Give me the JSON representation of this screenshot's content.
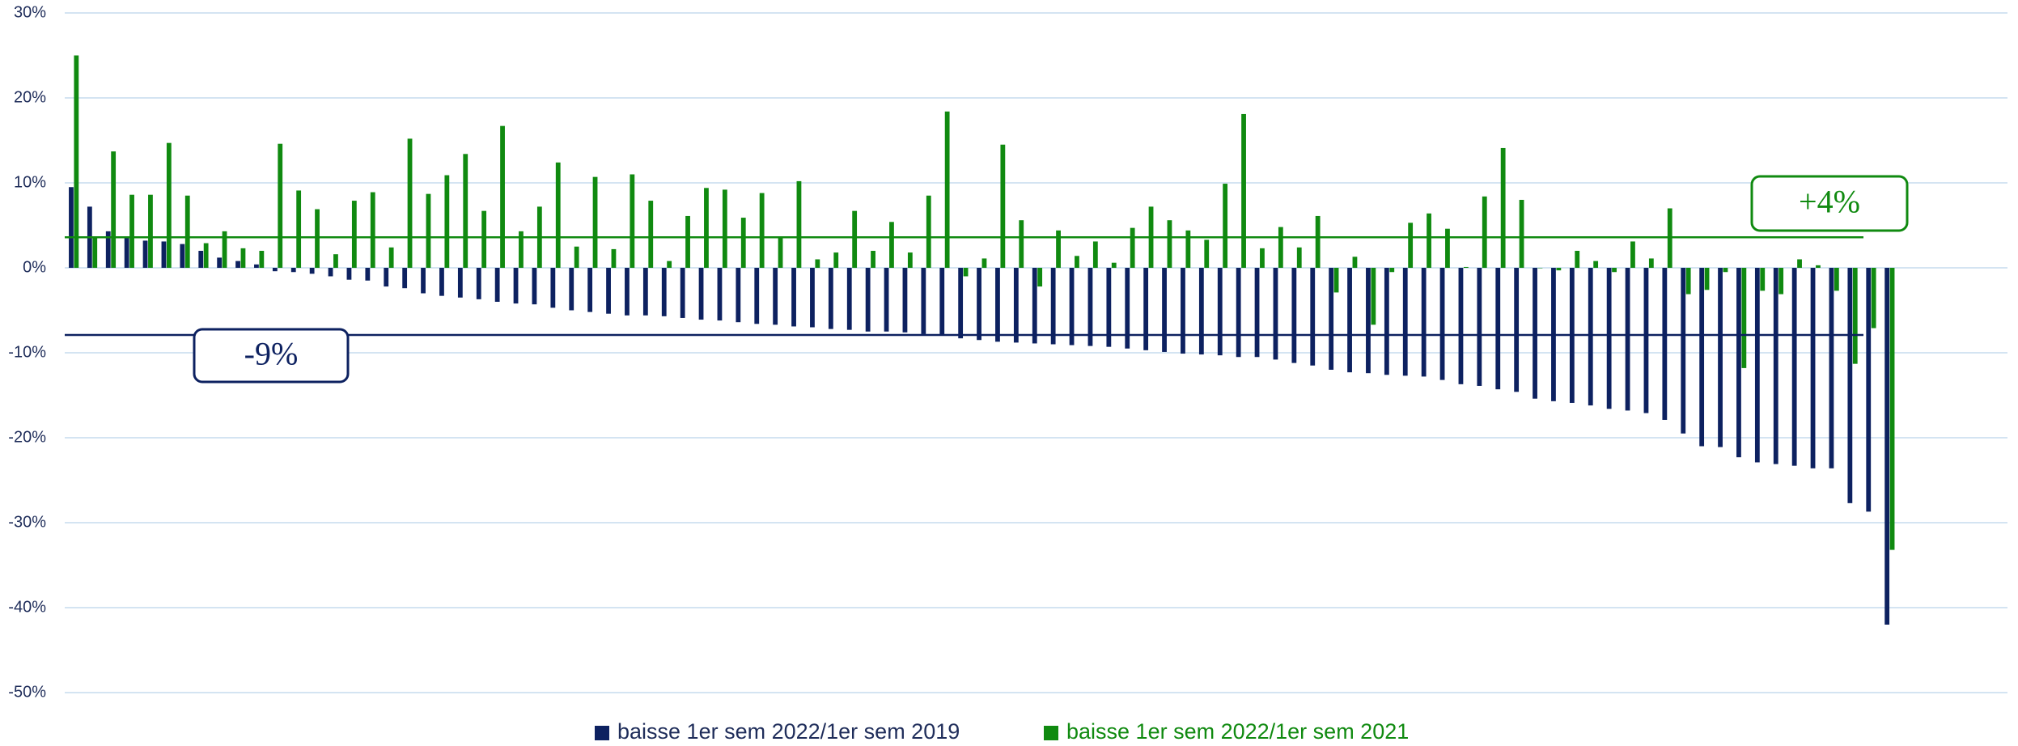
{
  "chart_data": {
    "type": "bar",
    "categories": [
      null,
      null,
      null,
      null,
      null,
      null,
      null,
      null,
      null,
      null,
      null,
      null,
      null,
      null,
      null,
      null,
      null,
      null,
      null,
      null,
      null,
      null,
      null,
      null,
      null,
      null,
      null,
      null,
      null,
      null,
      null,
      null,
      null,
      null,
      null,
      null,
      null,
      null,
      null,
      null,
      null,
      null,
      null,
      null,
      null,
      null,
      null,
      null,
      null,
      null,
      null,
      null,
      null,
      null,
      null,
      null,
      null,
      null,
      null,
      null,
      null,
      null,
      null,
      null,
      null,
      null,
      null,
      null,
      null,
      null,
      null,
      null,
      null,
      null,
      null,
      null,
      null,
      null,
      null,
      null,
      null,
      null,
      null,
      null,
      null,
      null,
      null,
      null,
      null,
      null,
      null,
      null,
      null,
      null,
      null,
      null,
      null,
      null,
      null
    ],
    "series": [
      {
        "name": "baisse 1er sem 2022/1er sem 2019",
        "color": "#0d2160",
        "values": [
          9.5,
          7.2,
          4.3,
          3.6,
          3.2,
          3.1,
          2.8,
          2.0,
          1.2,
          0.8,
          0.4,
          -0.4,
          -0.5,
          -0.7,
          -1.0,
          -1.4,
          -1.5,
          -2.2,
          -2.4,
          -3.0,
          -3.3,
          -3.5,
          -3.7,
          -4.0,
          -4.2,
          -4.3,
          -4.7,
          -5.0,
          -5.2,
          -5.4,
          -5.6,
          -5.6,
          -5.7,
          -5.9,
          -6.1,
          -6.2,
          -6.4,
          -6.6,
          -6.7,
          -6.9,
          -7.0,
          -7.2,
          -7.3,
          -7.5,
          -7.5,
          -7.6,
          -7.8,
          -7.9,
          -8.3,
          -8.5,
          -8.7,
          -8.8,
          -8.9,
          -9.0,
          -9.1,
          -9.2,
          -9.3,
          -9.5,
          -9.7,
          -9.9,
          -10.1,
          -10.2,
          -10.3,
          -10.5,
          -10.5,
          -10.8,
          -11.2,
          -11.5,
          -12.0,
          -12.3,
          -12.4,
          -12.6,
          -12.7,
          -12.8,
          -13.2,
          -13.7,
          -13.9,
          -14.3,
          -14.6,
          -15.4,
          -15.7,
          -15.9,
          -16.2,
          -16.6,
          -16.8,
          -17.1,
          -17.9,
          -19.5,
          -21.0,
          -21.1,
          -22.3,
          -22.9,
          -23.1,
          -23.3,
          -23.6,
          -23.6,
          -27.7,
          -28.7,
          -42.0
        ]
      },
      {
        "name": "baisse 1er sem 2022/1er sem 2021",
        "color": "#108a10",
        "values": [
          25,
          3.5,
          13.7,
          8.6,
          8.6,
          14.7,
          8.5,
          2.9,
          4.3,
          2.3,
          2.0,
          14.6,
          9.1,
          6.9,
          1.6,
          7.9,
          8.9,
          2.4,
          15.2,
          8.7,
          10.9,
          13.4,
          6.7,
          16.7,
          4.3,
          7.2,
          12.4,
          2.5,
          10.7,
          2.2,
          11.0,
          7.9,
          0.8,
          6.1,
          9.4,
          9.2,
          5.9,
          8.8,
          3.7,
          10.2,
          1.0,
          1.8,
          6.7,
          2.0,
          5.4,
          1.8,
          8.5,
          18.4,
          -1.0,
          1.1,
          14.5,
          5.6,
          -2.2,
          4.4,
          1.4,
          3.1,
          0.6,
          4.7,
          7.2,
          5.6,
          4.4,
          3.3,
          9.9,
          18.1,
          2.3,
          4.8,
          2.4,
          6.1,
          -2.9,
          1.3,
          -6.7,
          -0.5,
          5.3,
          6.4,
          4.6,
          0.1,
          8.4,
          14.1,
          8.0,
          0,
          -0.3,
          2.0,
          0.8,
          -0.5,
          3.1,
          1.1,
          7.0,
          -3.1,
          -2.6,
          -0.5,
          -11.8,
          -2.7,
          -3.1,
          1.0,
          0.3,
          -2.7,
          -11.3,
          -7.1,
          -33.2
        ]
      }
    ],
    "ylim": [
      -50,
      30
    ],
    "yticks": [
      {
        "value": -50,
        "label": "-50%"
      },
      {
        "value": -40,
        "label": "-40%"
      },
      {
        "value": -30,
        "label": "-30%"
      },
      {
        "value": -20,
        "label": "-20%"
      },
      {
        "value": -10,
        "label": "-10%"
      },
      {
        "value": 0,
        "label": "0%"
      },
      {
        "value": 10,
        "label": "10%"
      },
      {
        "value": 20,
        "label": "20%"
      },
      {
        "value": 30,
        "label": "30%"
      }
    ],
    "grid": true,
    "legend": "bottom",
    "annotations": [
      {
        "text": "-9%",
        "y": -7.9,
        "color": "#0d2160"
      },
      {
        "text": "+4%",
        "y": 3.6,
        "color": "#108a10"
      }
    ]
  }
}
